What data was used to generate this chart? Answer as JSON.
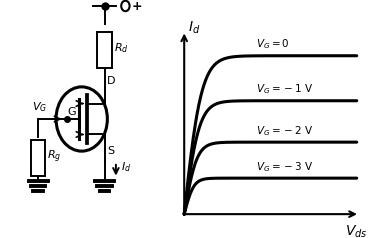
{
  "background_color": "#ffffff",
  "iv_curves": {
    "vg_labels": [
      "$V_G = 0$",
      "$V_G = -1$ V",
      "$V_G = -2$ V",
      "$V_G = -3$ V"
    ],
    "id_sat": [
      0.88,
      0.63,
      0.4,
      0.2
    ],
    "vp": [
      0.55,
      0.48,
      0.4,
      0.3
    ],
    "line_color": "#000000",
    "line_width": 2.2
  }
}
